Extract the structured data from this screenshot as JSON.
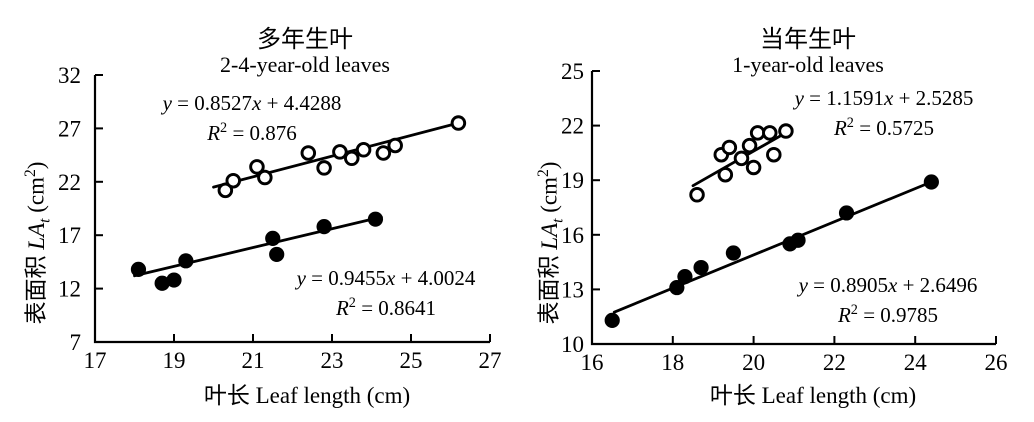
{
  "figure": {
    "background": "#ffffff",
    "ink": "#000000"
  },
  "chart_data": [
    {
      "type": "scatter",
      "title_cn": "多年生叶",
      "title_en": "2-4-year-old leaves",
      "xlabel": "叶长 Leaf length (cm)",
      "ylabel": "表面积 LA_t (cm^2)",
      "xlim": [
        17,
        27
      ],
      "xticks": [
        17,
        19,
        21,
        23,
        25,
        27
      ],
      "ylim": [
        7,
        32
      ],
      "yticks": [
        7,
        12,
        17,
        22,
        27,
        32
      ],
      "grid": false,
      "series": [
        {
          "name": "open-circles-upper",
          "marker": "open-circle",
          "equation": "y = 0.8527x + 4.4288",
          "r2": "R^2 = 0.876",
          "points": [
            [
              20.3,
              21.2
            ],
            [
              20.5,
              22.1
            ],
            [
              21.1,
              23.4
            ],
            [
              21.3,
              22.4
            ],
            [
              22.4,
              24.7
            ],
            [
              22.8,
              23.3
            ],
            [
              23.2,
              24.8
            ],
            [
              23.5,
              24.2
            ],
            [
              23.8,
              25.0
            ],
            [
              24.3,
              24.7
            ],
            [
              24.6,
              25.4
            ],
            [
              26.2,
              27.5
            ]
          ],
          "trendline": [
            [
              20.0,
              21.5
            ],
            [
              26.3,
              27.6
            ]
          ]
        },
        {
          "name": "filled-circles-lower",
          "marker": "filled-circle",
          "equation": "y = 0.9455x + 4.0024",
          "r2": "R^2 = 0.8641",
          "points": [
            [
              18.1,
              13.8
            ],
            [
              18.7,
              12.5
            ],
            [
              19.0,
              12.8
            ],
            [
              19.3,
              14.6
            ],
            [
              21.5,
              16.7
            ],
            [
              21.6,
              15.2
            ],
            [
              22.8,
              17.8
            ],
            [
              24.1,
              18.5
            ]
          ],
          "trendline": [
            [
              18.0,
              13.2
            ],
            [
              24.25,
              18.7
            ]
          ]
        }
      ]
    },
    {
      "type": "scatter",
      "title_cn": "当年生叶",
      "title_en": "1-year-old leaves",
      "xlabel": "叶长 Leaf length (cm)",
      "ylabel": "表面积 LA_t (cm^2)",
      "xlim": [
        16,
        26
      ],
      "xticks": [
        16,
        18,
        20,
        22,
        24,
        26
      ],
      "ylim": [
        10,
        25
      ],
      "yticks": [
        10,
        13,
        16,
        19,
        22,
        25
      ],
      "grid": false,
      "series": [
        {
          "name": "open-circles-upper",
          "marker": "open-circle",
          "equation": "y = 1.1591x + 2.5285",
          "r2": "R^2 = 0.5725",
          "points": [
            [
              18.6,
              18.2
            ],
            [
              19.2,
              20.4
            ],
            [
              19.4,
              20.8
            ],
            [
              19.3,
              19.3
            ],
            [
              19.7,
              20.2
            ],
            [
              19.9,
              20.9
            ],
            [
              20.1,
              21.6
            ],
            [
              20.0,
              19.7
            ],
            [
              20.4,
              21.6
            ],
            [
              20.5,
              20.4
            ],
            [
              20.8,
              21.7
            ]
          ],
          "trendline": [
            [
              18.5,
              18.7
            ],
            [
              20.95,
              21.8
            ]
          ]
        },
        {
          "name": "filled-circles-lower",
          "marker": "filled-circle",
          "equation": "y = 0.8905x + 2.6496",
          "r2": "R^2 = 0.9785",
          "points": [
            [
              16.5,
              11.3
            ],
            [
              18.1,
              13.1
            ],
            [
              18.3,
              13.7
            ],
            [
              18.7,
              14.2
            ],
            [
              19.5,
              15.0
            ],
            [
              20.9,
              15.5
            ],
            [
              21.1,
              15.7
            ],
            [
              22.3,
              17.2
            ],
            [
              24.4,
              18.9
            ]
          ],
          "trendline": [
            [
              16.55,
              11.75
            ],
            [
              24.45,
              18.95
            ]
          ]
        }
      ]
    }
  ]
}
